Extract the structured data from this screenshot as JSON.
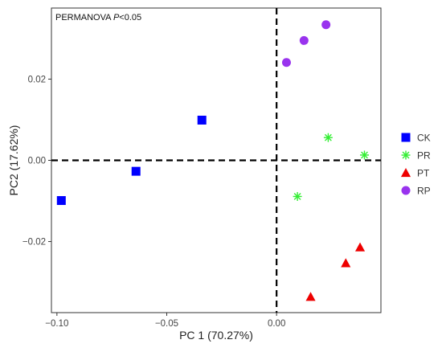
{
  "chart_data": {
    "type": "scatter",
    "title": "",
    "annotation": {
      "prefix": "PERMANOVA ",
      "italic": "P",
      "suffix": "<0.05"
    },
    "xlabel": "PC 1 (70.27%)",
    "ylabel": "PC2 (17.62%)",
    "xlim": [
      -0.1025,
      0.0475
    ],
    "ylim": [
      -0.0375,
      0.0375
    ],
    "x_ticks": [
      -0.1,
      -0.05,
      0.0
    ],
    "x_tick_labels": [
      "−0.10",
      "−0.05",
      "0.00"
    ],
    "y_ticks": [
      -0.02,
      0.0,
      0.02
    ],
    "y_tick_labels": [
      "−0.02",
      "0.00",
      "0.02"
    ],
    "reference_lines": {
      "x": 0,
      "y": 0,
      "style": "dashed"
    },
    "grid": false,
    "legend_position": "right",
    "series": [
      {
        "name": "CK",
        "color": "#0000ff",
        "marker": "square",
        "points": [
          [
            -0.098,
            -0.0099
          ],
          [
            -0.064,
            -0.0027
          ],
          [
            -0.034,
            0.0099
          ]
        ]
      },
      {
        "name": "PR",
        "color": "#33ee33",
        "marker": "asterisk",
        "points": [
          [
            0.04,
            0.0013
          ],
          [
            0.0235,
            0.0056
          ],
          [
            0.0095,
            -0.0089
          ]
        ]
      },
      {
        "name": "PT",
        "color": "#ee0000",
        "marker": "triangle",
        "points": [
          [
            0.038,
            -0.0214
          ],
          [
            0.0315,
            -0.0253
          ],
          [
            0.0155,
            -0.0336
          ]
        ]
      },
      {
        "name": "RP",
        "color": "#9933ee",
        "marker": "circle",
        "points": [
          [
            0.0225,
            0.0334
          ],
          [
            0.0125,
            0.0295
          ],
          [
            0.0045,
            0.0241
          ]
        ]
      }
    ]
  }
}
